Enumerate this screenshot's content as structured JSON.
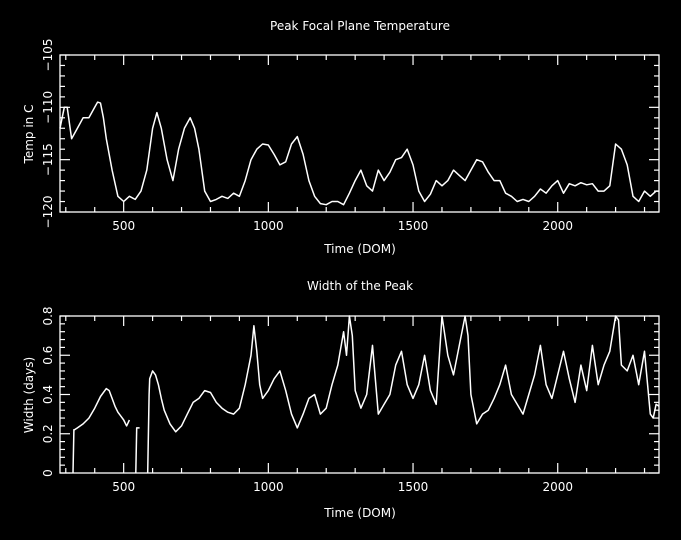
{
  "chart_data": [
    {
      "type": "line",
      "title": "Peak Focal Plane Temperature",
      "xlabel": "Time (DOM)",
      "ylabel": "Temp in C",
      "xlim": [
        280,
        2350
      ],
      "ylim": [
        -120,
        -105
      ],
      "x_ticks": [
        500,
        1000,
        1500,
        2000
      ],
      "y_ticks": [
        -120,
        -115,
        -110,
        -105
      ],
      "grid": false,
      "series": [
        {
          "x": [
            280,
            295,
            305,
            320,
            340,
            360,
            380,
            400,
            410,
            420,
            430,
            440,
            460,
            480,
            500,
            520,
            540,
            560,
            580,
            600,
            615,
            630,
            650,
            670,
            690,
            710,
            730,
            745,
            760,
            780,
            800,
            820,
            840,
            860,
            880,
            900,
            920,
            940,
            960,
            980,
            1000,
            1020,
            1040,
            1060,
            1080,
            1100,
            1120,
            1140,
            1160,
            1180,
            1200,
            1220,
            1240,
            1260,
            1280,
            1300,
            1320,
            1340,
            1360,
            1380,
            1400,
            1420,
            1440,
            1460,
            1480,
            1500,
            1520,
            1540,
            1560,
            1580,
            1600,
            1620,
            1640,
            1660,
            1680,
            1700,
            1720,
            1740,
            1760,
            1780,
            1800,
            1820,
            1840,
            1860,
            1880,
            1900,
            1920,
            1940,
            1960,
            1980,
            2000,
            2020,
            2040,
            2060,
            2080,
            2100,
            2120,
            2140,
            2160,
            2180,
            2200,
            2220,
            2240,
            2260,
            2280,
            2300,
            2320,
            2340,
            2350
          ],
          "y": [
            -112,
            -110,
            -110,
            -113,
            -112,
            -111,
            -111,
            -110,
            -109.5,
            -109.6,
            -111,
            -113,
            -116,
            -118.5,
            -119,
            -118.5,
            -118.8,
            -118,
            -116,
            -112,
            -110.5,
            -112,
            -115,
            -117,
            -114,
            -112,
            -111,
            -112,
            -114,
            -118,
            -119,
            -118.8,
            -118.5,
            -118.7,
            -118.2,
            -118.5,
            -117,
            -115,
            -114,
            -113.5,
            -113.6,
            -114.5,
            -115.5,
            -115.2,
            -113.5,
            -112.8,
            -114.5,
            -117,
            -118.5,
            -119.2,
            -119.3,
            -119,
            -119,
            -119.3,
            -118.2,
            -117,
            -116,
            -117.5,
            -118,
            -116,
            -117,
            -116.2,
            -115,
            -114.8,
            -114,
            -115.5,
            -118,
            -119,
            -118.3,
            -117,
            -117.5,
            -117,
            -116,
            -116.5,
            -117,
            -116,
            -115,
            -115.2,
            -116.2,
            -117,
            -117,
            -118.2,
            -118.5,
            -119,
            -118.8,
            -119,
            -118.5,
            -117.8,
            -118.2,
            -117.5,
            -117,
            -118.2,
            -117.3,
            -117.5,
            -117.2,
            -117.4,
            -117.3,
            -118,
            -118,
            -117.5,
            -113.5,
            -114,
            -115.5,
            -118.5,
            -119,
            -118,
            -118.5,
            -118,
            -118
          ]
        }
      ]
    },
    {
      "type": "line",
      "title": "Width of the Peak",
      "xlabel": "Time (DOM)",
      "ylabel": "Width (days)",
      "xlim": [
        280,
        2350
      ],
      "ylim": [
        0,
        0.8
      ],
      "x_ticks": [
        500,
        1000,
        1500,
        2000
      ],
      "y_ticks": [
        0,
        0.2,
        0.4,
        0.6,
        0.8
      ],
      "grid": false,
      "series": [
        {
          "segments": [
            {
              "x": [
                325,
                328,
                330,
                340,
                360,
                380,
                400,
                420,
                440,
                450,
                460,
                470,
                480,
                490,
                500,
                510,
                520
              ],
              "y": [
                0,
                0.22,
                0.22,
                0.23,
                0.25,
                0.28,
                0.33,
                0.39,
                0.43,
                0.42,
                0.38,
                0.34,
                0.31,
                0.29,
                0.27,
                0.24,
                0.27
              ]
            },
            {
              "x": [
                542,
                545,
                550,
                555
              ],
              "y": [
                0,
                0.23,
                0.23,
                0.23
              ]
            },
            {
              "x": [
                583,
                588,
                590,
                600,
                610,
                620,
                630,
                640,
                660,
                680,
                700,
                720,
                740,
                760,
                780,
                800,
                820,
                840,
                860,
                880,
                900,
                920,
                940,
                950,
                960,
                970,
                980,
                1000,
                1020,
                1040,
                1060,
                1080,
                1100,
                1120,
                1140,
                1160,
                1180,
                1200,
                1220,
                1240,
                1260,
                1270,
                1280,
                1290,
                1300,
                1320,
                1340,
                1360,
                1380,
                1400,
                1420,
                1440,
                1460,
                1480,
                1500,
                1520,
                1540,
                1560,
                1580,
                1600,
                1610,
                1620,
                1640,
                1660,
                1680,
                1690,
                1700,
                1720,
                1740,
                1760,
                1780,
                1800,
                1820,
                1840,
                1860,
                1880,
                1900,
                1920,
                1940,
                1960,
                1980,
                2000,
                2020,
                2040,
                2060,
                2080,
                2100,
                2120,
                2140,
                2160,
                2180,
                2200,
                2210,
                2220,
                2240,
                2260,
                2280,
                2300,
                2320,
                2330,
                2340,
                2350
              ],
              "y": [
                0,
                0.4,
                0.48,
                0.52,
                0.5,
                0.45,
                0.38,
                0.32,
                0.25,
                0.21,
                0.24,
                0.3,
                0.36,
                0.38,
                0.42,
                0.41,
                0.36,
                0.33,
                0.31,
                0.3,
                0.33,
                0.45,
                0.6,
                0.75,
                0.62,
                0.45,
                0.38,
                0.42,
                0.48,
                0.52,
                0.42,
                0.3,
                0.23,
                0.3,
                0.38,
                0.4,
                0.3,
                0.33,
                0.45,
                0.55,
                0.72,
                0.6,
                0.8,
                0.7,
                0.42,
                0.33,
                0.4,
                0.65,
                0.3,
                0.35,
                0.4,
                0.55,
                0.62,
                0.45,
                0.38,
                0.45,
                0.6,
                0.42,
                0.35,
                0.8,
                0.7,
                0.6,
                0.5,
                0.65,
                0.8,
                0.7,
                0.4,
                0.25,
                0.3,
                0.32,
                0.38,
                0.45,
                0.55,
                0.4,
                0.35,
                0.3,
                0.4,
                0.5,
                0.65,
                0.45,
                0.38,
                0.5,
                0.62,
                0.48,
                0.36,
                0.55,
                0.42,
                0.65,
                0.45,
                0.55,
                0.62,
                0.8,
                0.78,
                0.55,
                0.52,
                0.6,
                0.45,
                0.62,
                0.3,
                0.28,
                0.35,
                0.34
              ]
            }
          ]
        }
      ]
    }
  ]
}
